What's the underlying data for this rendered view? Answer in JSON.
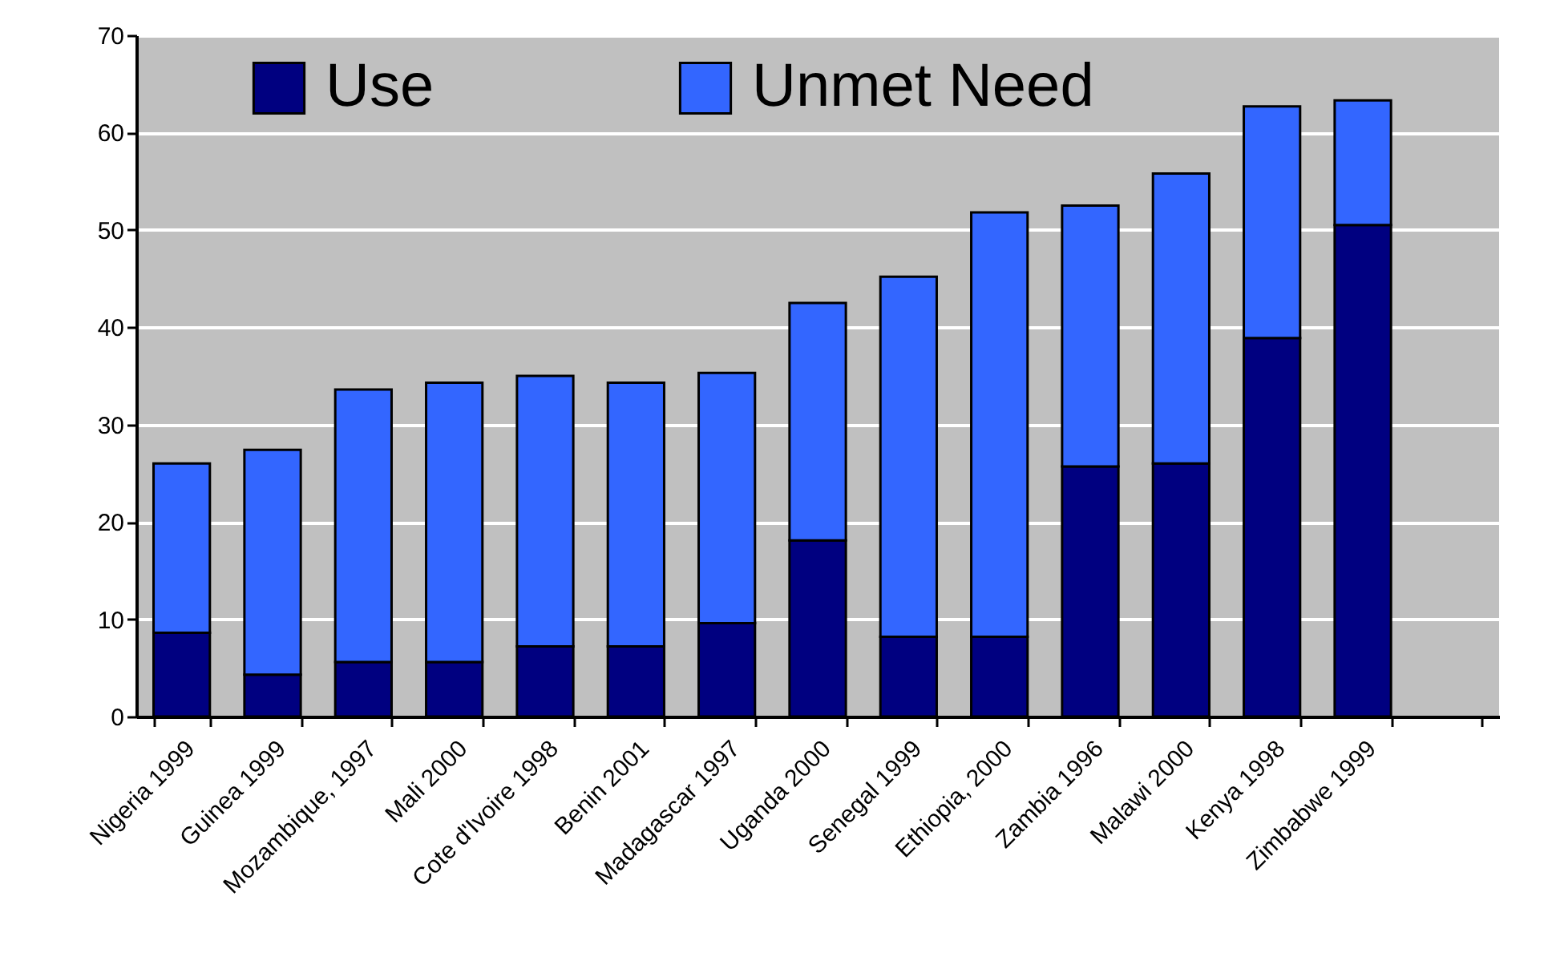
{
  "chart_data": {
    "type": "bar",
    "stacked": true,
    "categories": [
      "Nigeria 1999",
      "Guinea 1999",
      "Mozambique, 1997",
      "Mali 2000",
      "Cote d'Ivoire 1998",
      "Benin 2001",
      "Madagascar 1997",
      "Uganda 2000",
      "Senegal 1999",
      "Ethiopia, 2000",
      "Zambia 1996",
      "Malawi 2000",
      "Kenya  1998",
      "Zimbabwe 1999",
      null
    ],
    "series": [
      {
        "name": "Use",
        "color": "#000080",
        "values": [
          8.6,
          4.3,
          5.6,
          5.6,
          7.2,
          7.2,
          9.6,
          18.1,
          8.2,
          8.2,
          25.7,
          26.0,
          38.9,
          50.5,
          null
        ]
      },
      {
        "name": "Unmet Need",
        "color": "#3366ff",
        "values": [
          17.4,
          23.1,
          28.0,
          28.7,
          27.8,
          27.1,
          25.7,
          24.4,
          37.0,
          43.6,
          26.8,
          29.8,
          23.8,
          12.8,
          null
        ]
      }
    ],
    "ylim": [
      0,
      70
    ],
    "yticks": [
      0,
      10,
      20,
      30,
      40,
      50,
      60,
      70
    ],
    "grid": "y",
    "legend": "top"
  }
}
